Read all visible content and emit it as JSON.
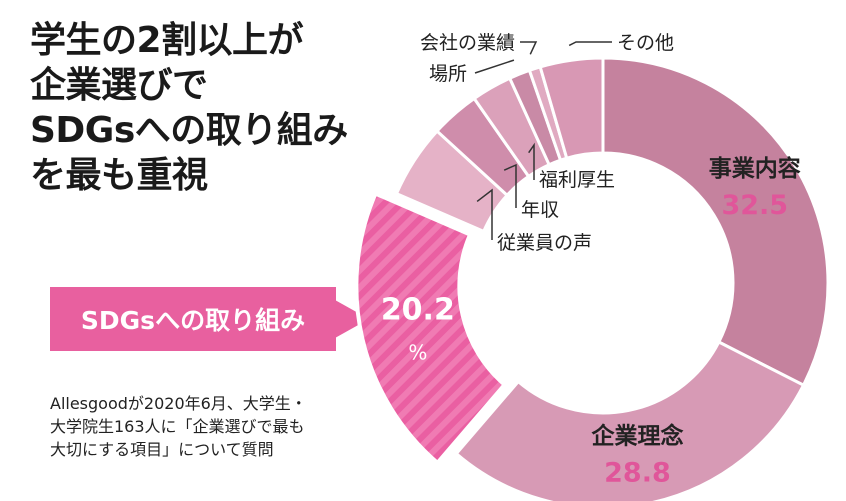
{
  "title_lines": [
    "学生の2割以上が",
    "企業選びで",
    "SDGsへの取り組み",
    "を最も重視"
  ],
  "callout": "SDGsへの取り組み",
  "source_lines": [
    "Allesgoodが2020年6月、大学生・",
    "大学院生163人に「企業選びで最も",
    "大切にする項目」について質問"
  ],
  "chart_data": {
    "type": "pie",
    "unit": "%",
    "slices": [
      {
        "label": "事業内容",
        "value": 32.5,
        "color": "#c5829e"
      },
      {
        "label": "企業理念",
        "value": 28.8,
        "color": "#d79ab5"
      },
      {
        "label": "SDGsへの取り組み",
        "value": 20.2,
        "color": "#f07bb3",
        "highlight": true
      },
      {
        "label": "従業員の声",
        "value": 5.3,
        "color": "#e5b2c7"
      },
      {
        "label": "年収",
        "value": 3.5,
        "color": "#cf8dab"
      },
      {
        "label": "福利厚生",
        "value": 2.9,
        "color": "#dba1ba"
      },
      {
        "label": "場所",
        "value": 1.5,
        "color": "#c98aa6"
      },
      {
        "label": "会社の業績",
        "value": 0.8,
        "color": "#e0aac1"
      },
      {
        "label": "その他",
        "value": 4.5,
        "color": "#d898b4"
      }
    ]
  }
}
